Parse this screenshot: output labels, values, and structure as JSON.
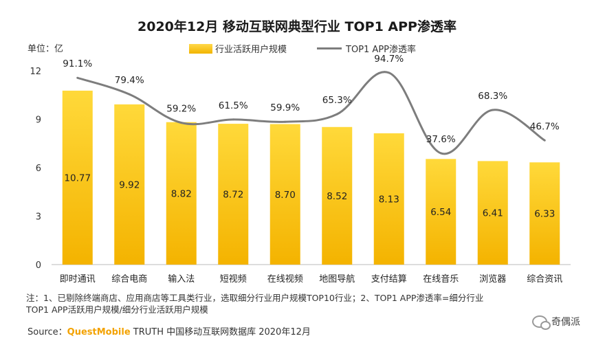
{
  "title": "2020年12月 移动互联网典型行业 TOP1 APP渗透率",
  "unit_label": "单位：亿",
  "legend": {
    "bar": "行业活跃用户规模",
    "line": "TOP1 APP渗透率"
  },
  "chart_data": {
    "type": "bar",
    "categories": [
      "即时通讯",
      "综合电商",
      "输入法",
      "短视频",
      "在线视频",
      "地图导航",
      "支付结算",
      "在线音乐",
      "浏览器",
      "综合资讯"
    ],
    "series": [
      {
        "name": "行业活跃用户规模",
        "type": "bar",
        "values": [
          10.77,
          9.92,
          8.82,
          8.72,
          8.7,
          8.52,
          8.13,
          6.54,
          6.41,
          6.33
        ],
        "labels": [
          "10.77",
          "9.92",
          "8.82",
          "8.72",
          "8.70",
          "8.52",
          "8.13",
          "6.54",
          "6.41",
          "6.33"
        ]
      },
      {
        "name": "TOP1 APP渗透率",
        "type": "line",
        "values": [
          91.1,
          79.4,
          59.2,
          61.5,
          59.9,
          65.3,
          94.7,
          37.6,
          68.3,
          46.7
        ],
        "labels": [
          "91.1%",
          "79.4%",
          "59.2%",
          "61.5%",
          "59.9%",
          "65.3%",
          "94.7%",
          "37.6%",
          "68.3%",
          "46.7%"
        ]
      }
    ],
    "ylim": [
      0,
      12
    ],
    "yticks": [
      "0",
      "3",
      "6",
      "9",
      "12"
    ],
    "line_scale": {
      "min": 0,
      "max": 100
    }
  },
  "note": {
    "line1": "注：1、已剔除终端商店、应用商店等工具类行业，选取细分行业用户规模TOP10行业；2、TOP1 APP渗透率=细分行业",
    "line2": "TOP1 APP活跃用户规模/细分行业活跃用户规模"
  },
  "source": {
    "prefix": "Source：",
    "brand": "QuestMobile",
    "rest": " TRUTH 中国移动互联网数据库 2020年12月"
  },
  "watermark": {
    "name": "奇偶派"
  }
}
